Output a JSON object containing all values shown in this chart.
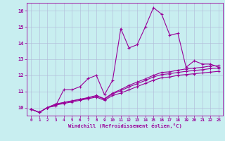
{
  "xlabel": "Windchill (Refroidissement éolien,°C)",
  "background_color": "#c8eef0",
  "grid_color": "#b0b8d8",
  "line_color": "#990099",
  "xlim": [
    -0.5,
    23.5
  ],
  "ylim": [
    9.5,
    16.5
  ],
  "yticks": [
    10,
    11,
    12,
    13,
    14,
    15,
    16
  ],
  "xticks": [
    0,
    1,
    2,
    3,
    4,
    5,
    6,
    7,
    8,
    9,
    10,
    11,
    12,
    13,
    14,
    15,
    16,
    17,
    18,
    19,
    20,
    21,
    22,
    23
  ],
  "line1_x": [
    0,
    1,
    2,
    3,
    4,
    5,
    6,
    7,
    8,
    9,
    10,
    11,
    12,
    13,
    14,
    15,
    16,
    17,
    18,
    19,
    20,
    21,
    22,
    23
  ],
  "line1_y": [
    9.9,
    9.7,
    10.0,
    10.1,
    11.1,
    11.1,
    11.3,
    11.8,
    12.0,
    10.8,
    11.7,
    14.9,
    13.7,
    13.9,
    15.0,
    16.2,
    15.8,
    14.5,
    14.6,
    12.5,
    12.9,
    12.7,
    12.7,
    12.5
  ],
  "line2_x": [
    0,
    1,
    2,
    3,
    4,
    5,
    6,
    7,
    8,
    9,
    10,
    11,
    12,
    13,
    14,
    15,
    16,
    17,
    18,
    19,
    20,
    21,
    22,
    23
  ],
  "line2_y": [
    9.9,
    9.7,
    10.0,
    10.15,
    10.25,
    10.35,
    10.45,
    10.55,
    10.65,
    10.45,
    10.75,
    10.9,
    11.1,
    11.3,
    11.5,
    11.7,
    11.85,
    11.9,
    12.0,
    12.05,
    12.1,
    12.15,
    12.2,
    12.25
  ],
  "line3_x": [
    0,
    1,
    2,
    3,
    4,
    5,
    6,
    7,
    8,
    9,
    10,
    11,
    12,
    13,
    14,
    15,
    16,
    17,
    18,
    19,
    20,
    21,
    22,
    23
  ],
  "line3_y": [
    9.9,
    9.7,
    10.0,
    10.2,
    10.3,
    10.4,
    10.5,
    10.6,
    10.72,
    10.52,
    10.85,
    11.05,
    11.28,
    11.48,
    11.68,
    11.9,
    12.05,
    12.1,
    12.18,
    12.25,
    12.3,
    12.35,
    12.42,
    12.45
  ],
  "line4_x": [
    0,
    1,
    2,
    3,
    4,
    5,
    6,
    7,
    8,
    9,
    10,
    11,
    12,
    13,
    14,
    15,
    16,
    17,
    18,
    19,
    20,
    21,
    22,
    23
  ],
  "line4_y": [
    9.9,
    9.7,
    10.0,
    10.22,
    10.32,
    10.42,
    10.52,
    10.62,
    10.75,
    10.55,
    10.9,
    11.12,
    11.38,
    11.58,
    11.78,
    12.0,
    12.18,
    12.22,
    12.32,
    12.4,
    12.45,
    12.5,
    12.58,
    12.6
  ]
}
